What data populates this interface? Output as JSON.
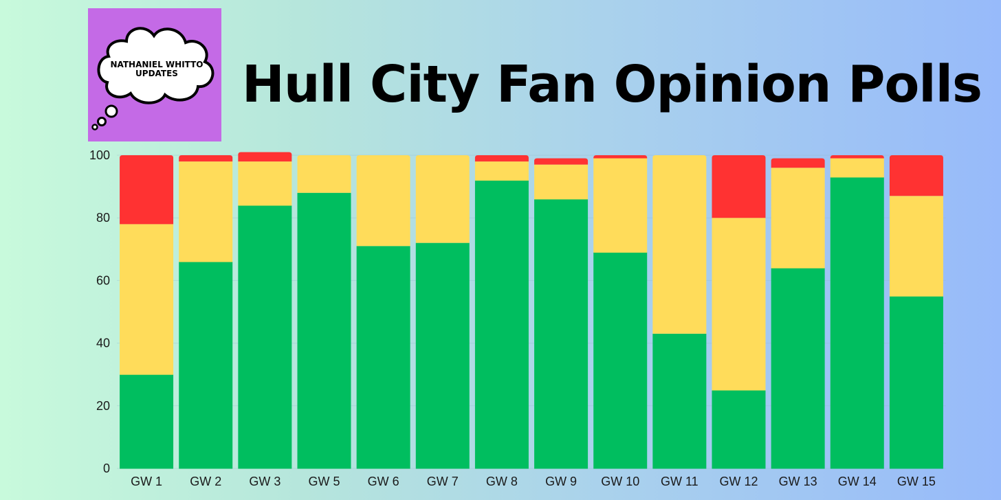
{
  "logo": {
    "text": "NATHANIEL WHITTO\nUPDATES",
    "background": "#c46ae6",
    "icon": "thought-cloud-icon"
  },
  "header": {
    "title": "Hull City Fan Opinion Polls"
  },
  "chart_data": {
    "type": "bar",
    "stacked": true,
    "title": "Hull City Fan Opinion Polls",
    "xlabel": "",
    "ylabel": "",
    "ylim": [
      0,
      100
    ],
    "yticks": [
      0,
      20,
      40,
      60,
      80,
      100
    ],
    "grid": true,
    "legend": "none",
    "categories": [
      "GW 1",
      "GW 2",
      "GW 3",
      "GW 5",
      "GW 6",
      "GW 7",
      "GW 8",
      "GW 9",
      "GW 10",
      "GW 11",
      "GW 12",
      "GW 13",
      "GW 14",
      "GW 15"
    ],
    "series": [
      {
        "color": "#00be5f",
        "values": [
          30,
          66,
          84,
          88,
          71,
          72,
          92,
          86,
          69,
          43,
          25,
          64,
          93,
          55
        ]
      },
      {
        "color": "#ffdc5a",
        "values": [
          48,
          32,
          14,
          12,
          29,
          28,
          6,
          11,
          30,
          57,
          55,
          32,
          6,
          32
        ]
      },
      {
        "color": "#ff3232",
        "values": [
          22,
          2,
          3,
          0,
          0,
          0,
          2,
          2,
          1,
          0,
          20,
          3,
          1,
          13
        ]
      }
    ]
  }
}
